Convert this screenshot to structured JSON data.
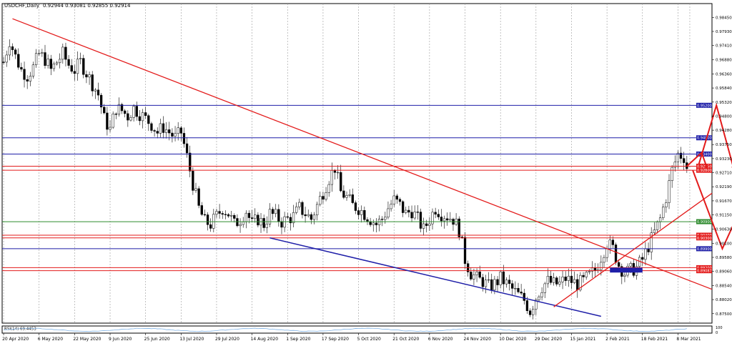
{
  "chart_data": {
    "type": "candlestick",
    "title": "USDCHF,Daily",
    "ohlc_header": "0.92944 0.93081 0.92855 0.92914",
    "ylim": [
      0.8715,
      0.9896
    ],
    "y_ticks": [
      "0.98450",
      "0.97930",
      "0.97410",
      "0.96880",
      "0.96360",
      "0.95840",
      "0.95320",
      "0.94800",
      "0.94280",
      "0.93750",
      "0.93230",
      "0.92710",
      "0.92190",
      "0.91670",
      "0.91150",
      "0.90630",
      "0.90100",
      "0.89580",
      "0.89060",
      "0.88540",
      "0.88020",
      "0.87500"
    ],
    "x_ticks": [
      "20 Apr 2020",
      "6 May 2020",
      "22 May 2020",
      "9 Jun 2020",
      "25 Jun 2020",
      "13 Jul 2020",
      "29 Jul 2020",
      "14 Aug 2020",
      "1 Sep 2020",
      "17 Sep 2020",
      "5 Oct 2020",
      "21 Oct 2020",
      "6 Nov 2020",
      "24 Nov 2020",
      "10 Dec 2020",
      "29 Dec 2020",
      "15 Jan 2021",
      "2 Feb 2021",
      "18 Feb 2021",
      "8 Mar 2021"
    ],
    "x_tick_index": [
      0,
      12,
      24,
      36,
      48,
      60,
      72,
      84,
      96,
      108,
      120,
      132,
      144,
      156,
      168,
      180,
      192,
      204,
      216,
      228
    ],
    "candles_count": 232,
    "anchors": [
      [
        0,
        0.968
      ],
      [
        2,
        0.976
      ],
      [
        4,
        0.97
      ],
      [
        6,
        0.965
      ],
      [
        8,
        0.963
      ],
      [
        10,
        0.966
      ],
      [
        12,
        0.971
      ],
      [
        14,
        0.969
      ],
      [
        16,
        0.965
      ],
      [
        18,
        0.968
      ],
      [
        20,
        0.971
      ],
      [
        22,
        0.967
      ],
      [
        24,
        0.965
      ],
      [
        26,
        0.968
      ],
      [
        28,
        0.964
      ],
      [
        30,
        0.96
      ],
      [
        32,
        0.956
      ],
      [
        34,
        0.947
      ],
      [
        36,
        0.943
      ],
      [
        38,
        0.951
      ],
      [
        40,
        0.95
      ],
      [
        42,
        0.948
      ],
      [
        44,
        0.951
      ],
      [
        46,
        0.949
      ],
      [
        48,
        0.947
      ],
      [
        50,
        0.945
      ],
      [
        52,
        0.942
      ],
      [
        54,
        0.944
      ],
      [
        56,
        0.942
      ],
      [
        58,
        0.94
      ],
      [
        60,
        0.942
      ],
      [
        62,
        0.933
      ],
      [
        64,
        0.923
      ],
      [
        66,
        0.914
      ],
      [
        68,
        0.909
      ],
      [
        70,
        0.908
      ],
      [
        72,
        0.911
      ],
      [
        74,
        0.914
      ],
      [
        76,
        0.912
      ],
      [
        78,
        0.908
      ],
      [
        80,
        0.91
      ],
      [
        82,
        0.913
      ],
      [
        84,
        0.908
      ],
      [
        86,
        0.91
      ],
      [
        88,
        0.908
      ],
      [
        90,
        0.912
      ],
      [
        92,
        0.911
      ],
      [
        94,
        0.909
      ],
      [
        96,
        0.91
      ],
      [
        98,
        0.911
      ],
      [
        100,
        0.914
      ],
      [
        102,
        0.912
      ],
      [
        104,
        0.91
      ],
      [
        106,
        0.915
      ],
      [
        108,
        0.92
      ],
      [
        110,
        0.925
      ],
      [
        112,
        0.929
      ],
      [
        114,
        0.92
      ],
      [
        116,
        0.918
      ],
      [
        118,
        0.915
      ],
      [
        120,
        0.914
      ],
      [
        122,
        0.912
      ],
      [
        124,
        0.91
      ],
      [
        126,
        0.908
      ],
      [
        128,
        0.91
      ],
      [
        130,
        0.914
      ],
      [
        132,
        0.917
      ],
      [
        134,
        0.915
      ],
      [
        136,
        0.912
      ],
      [
        138,
        0.913
      ],
      [
        140,
        0.91
      ],
      [
        142,
        0.906
      ],
      [
        144,
        0.91
      ],
      [
        146,
        0.914
      ],
      [
        148,
        0.912
      ],
      [
        150,
        0.911
      ],
      [
        152,
        0.91
      ],
      [
        154,
        0.906
      ],
      [
        156,
        0.895
      ],
      [
        158,
        0.89
      ],
      [
        160,
        0.888
      ],
      [
        162,
        0.887
      ],
      [
        164,
        0.885
      ],
      [
        166,
        0.886
      ],
      [
        168,
        0.888
      ],
      [
        170,
        0.886
      ],
      [
        172,
        0.884
      ],
      [
        174,
        0.882
      ],
      [
        176,
        0.88
      ],
      [
        178,
        0.876
      ],
      [
        180,
        0.881
      ],
      [
        182,
        0.885
      ],
      [
        184,
        0.887
      ],
      [
        186,
        0.886
      ],
      [
        188,
        0.886
      ],
      [
        190,
        0.888
      ],
      [
        192,
        0.887
      ],
      [
        194,
        0.886
      ],
      [
        196,
        0.887
      ],
      [
        198,
        0.889
      ],
      [
        200,
        0.891
      ],
      [
        202,
        0.896
      ],
      [
        204,
        0.901
      ],
      [
        206,
        0.899
      ],
      [
        208,
        0.893
      ],
      [
        210,
        0.89
      ],
      [
        212,
        0.891
      ],
      [
        214,
        0.892
      ],
      [
        216,
        0.895
      ],
      [
        218,
        0.9
      ],
      [
        220,
        0.905
      ],
      [
        222,
        0.91
      ],
      [
        224,
        0.918
      ],
      [
        226,
        0.928
      ],
      [
        228,
        0.934
      ],
      [
        230,
        0.933
      ],
      [
        231,
        0.9291
      ]
    ],
    "h_levels": [
      {
        "value": 0.952,
        "label": "0.95200",
        "color": "#1f1fa8"
      },
      {
        "value": 0.94,
        "label": "0.94000",
        "color": "#1f1fa8"
      },
      {
        "value": 0.934,
        "label": "0.93400",
        "color": "#1f1fa8"
      },
      {
        "value": 0.9295,
        "label": "0.92950",
        "color": "#e31b1b"
      },
      {
        "value": 0.928,
        "label": "0.92800",
        "color": "#e31b1b"
      },
      {
        "value": 0.909,
        "label": "0.90900",
        "color": "#2e8b2e"
      },
      {
        "value": 0.904,
        "label": "0.90400",
        "color": "#e31b1b"
      },
      {
        "value": 0.903,
        "label": "0.90300",
        "color": "#e31b1b"
      },
      {
        "value": 0.899,
        "label": "0.89900",
        "color": "#1f1fa8"
      },
      {
        "value": 0.892,
        "label": "0.89200",
        "color": "#e31b1b"
      },
      {
        "value": 0.89087,
        "label": "0.89087",
        "color": "#e31b1b"
      }
    ],
    "indicator_label": "RSI(14) 69.4453",
    "indicator_scale": [
      "100",
      "0"
    ],
    "colors": {
      "trend_red": "#e31b1b",
      "trend_blue": "#1f1fa8",
      "level_green": "#2e8b2e",
      "candle": "#000000",
      "grid": "#9a9a9a",
      "rsi_line": "#7fb2e5"
    }
  }
}
